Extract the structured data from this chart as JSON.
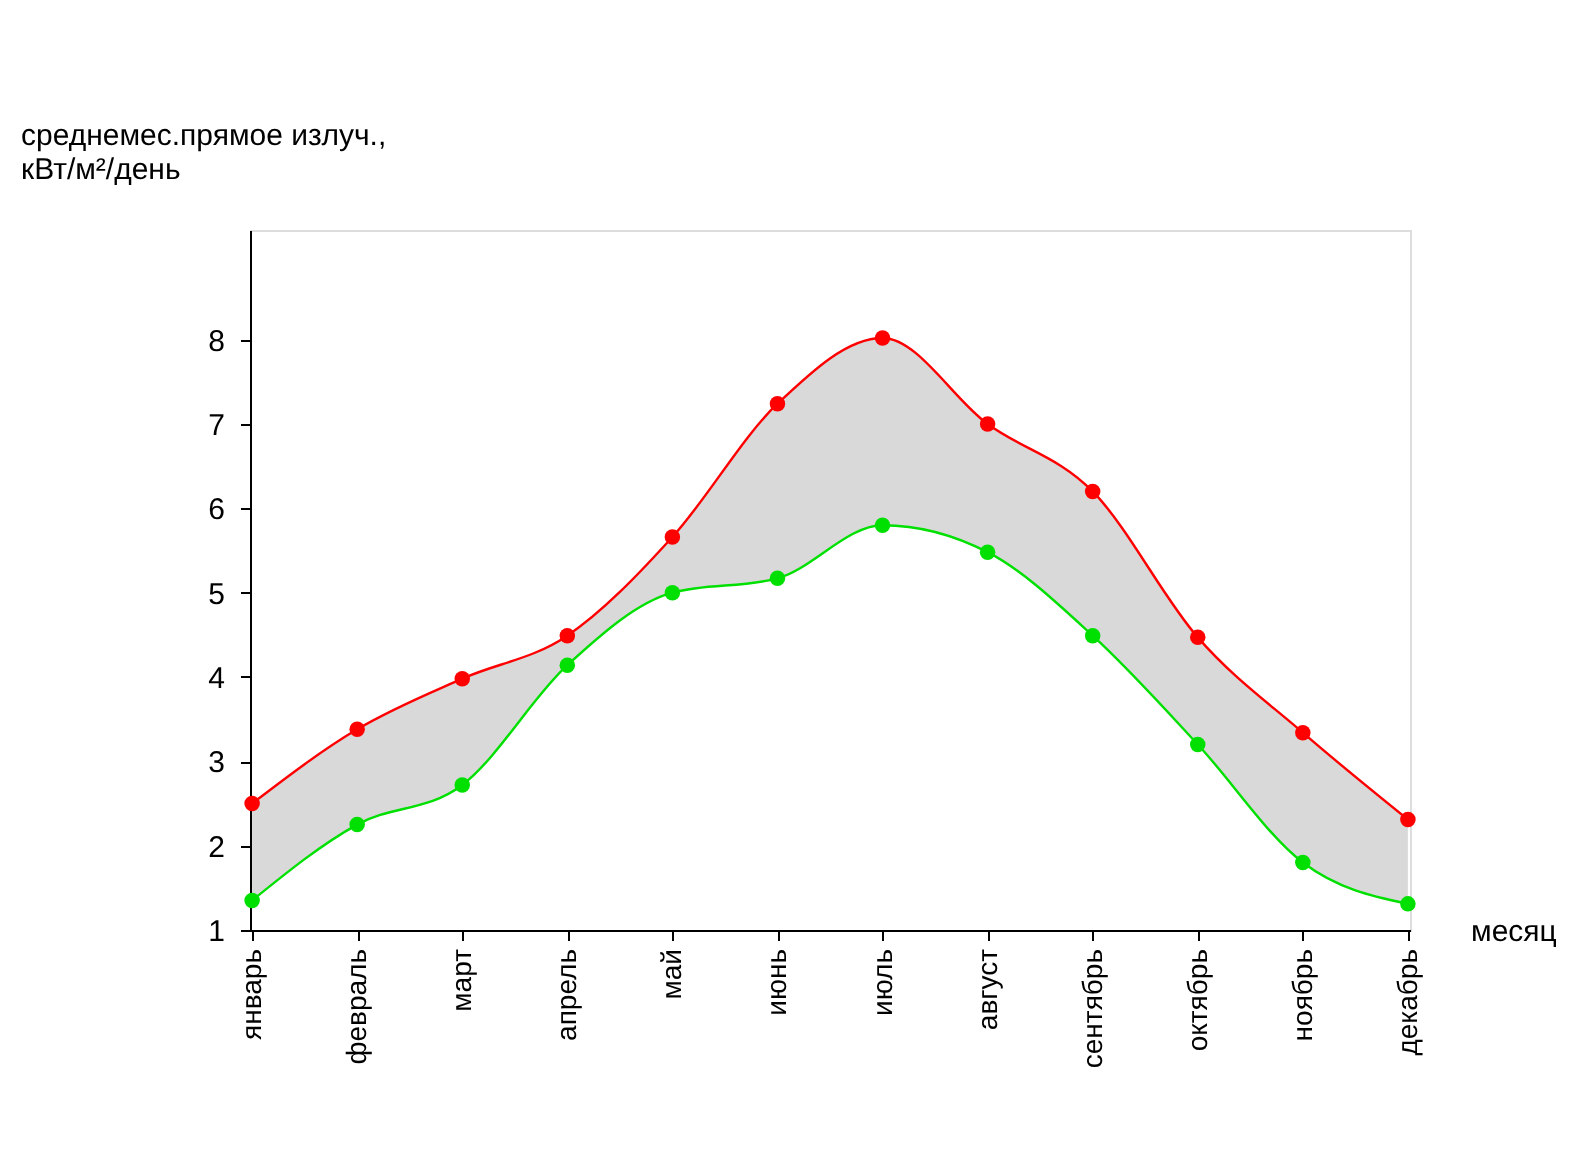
{
  "chart_data": {
    "type": "line",
    "xlabel": "месяц",
    "ylabel": "среднемес.прямое излуч.,\nкВт/м²/день",
    "categories": [
      "январь",
      "февраль",
      "март",
      "апрель",
      "май",
      "июнь",
      "июль",
      "август",
      "сентябрь",
      "октябрь",
      "ноябрь",
      "декабрь"
    ],
    "series": [
      {
        "type": "area",
        "color": "#ff0000",
        "values": [
          2.5,
          3.38,
          3.98,
          4.49,
          5.66,
          7.24,
          8.02,
          7.0,
          6.2,
          4.47,
          3.34,
          2.31
        ]
      },
      {
        "color": "#00e000",
        "values": [
          1.35,
          2.25,
          2.72,
          4.14,
          5.0,
          5.17,
          5.8,
          5.48,
          4.49,
          3.2,
          1.8,
          1.31
        ]
      }
    ],
    "ylim": [
      1,
      9.3
    ],
    "yticks": [
      1,
      2,
      3,
      4,
      5,
      6,
      7,
      8
    ],
    "grid": false,
    "marker": "circle",
    "line_style": "solid"
  }
}
